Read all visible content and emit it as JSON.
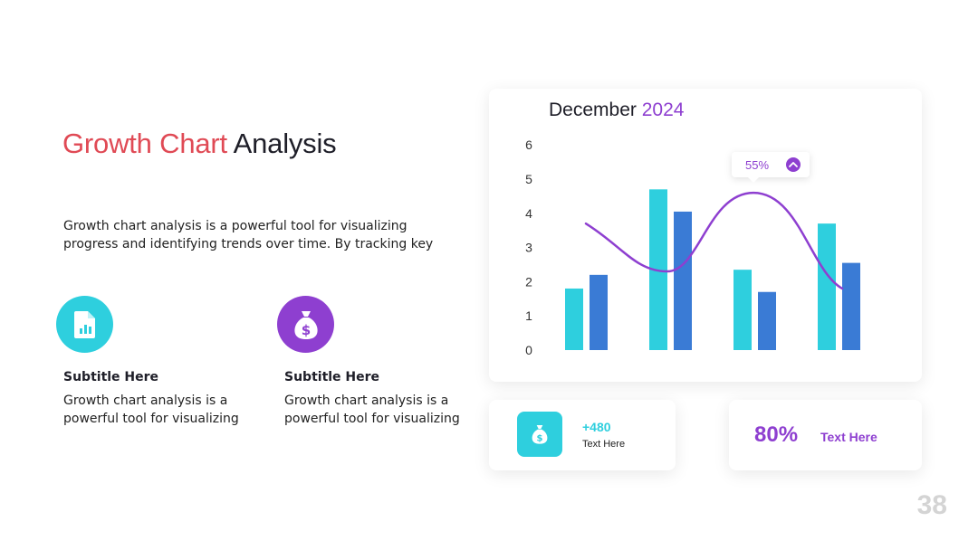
{
  "slide": {
    "title_accent": "Growth Chart",
    "title_rest": "Analysis",
    "description": "Growth chart analysis is a powerful tool for visualizing progress and identifying trends over time. By tracking key",
    "page_number": "38"
  },
  "features": [
    {
      "icon": "chart-document-icon",
      "color": "#2ecfde",
      "subtitle": "Subtitle Here",
      "text": "Growth chart analysis is a powerful tool for visualizing"
    },
    {
      "icon": "money-bag-icon",
      "color": "#8e3fd0",
      "subtitle": "Subtitle Here",
      "text": "Growth chart analysis is a powerful tool for visualizing"
    }
  ],
  "stats": {
    "card1": {
      "icon": "money-bag-icon",
      "value": "+480",
      "label": "Text Here"
    },
    "card2": {
      "value": "80%",
      "label": "Text Here"
    }
  },
  "chart_data": {
    "type": "bar",
    "title": "December",
    "title_year": "2024",
    "categories": [
      "",
      "",
      "",
      ""
    ],
    "ylim": [
      0,
      6
    ],
    "yticks": [
      "0",
      "1",
      "2",
      "3",
      "4",
      "5",
      "6"
    ],
    "series": [
      {
        "color": "#2ecfde",
        "values": [
          1.8,
          4.7,
          2.35,
          3.7
        ]
      },
      {
        "color": "#3a7bd5",
        "values": [
          2.2,
          4.05,
          1.7,
          2.55
        ]
      }
    ],
    "trend": {
      "color": "#8e3fd0",
      "y_start": 3.7,
      "y_min": 2.3,
      "y_max": 4.6,
      "y_end": 1.8
    },
    "tooltip": {
      "label": "55%",
      "icon": "chevron-up-icon"
    },
    "grid": false,
    "legend": "none"
  }
}
